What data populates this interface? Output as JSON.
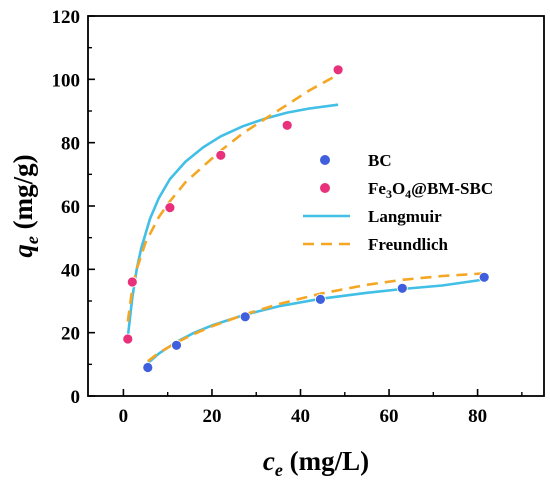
{
  "chart_data": {
    "type": "scatter",
    "xlabel": {
      "symbol": "c",
      "subscript": "e",
      "unit": " (mg/L)"
    },
    "ylabel": {
      "symbol": "q",
      "subscript": "e",
      "unit": " (mg/g)"
    },
    "xlim": [
      -8,
      95
    ],
    "ylim": [
      0,
      120
    ],
    "xticks": [
      0,
      20,
      40,
      60,
      80
    ],
    "yticks": [
      0,
      20,
      40,
      60,
      80,
      100,
      120
    ],
    "grid": false,
    "legend_position": "right",
    "series": [
      {
        "name": "BC",
        "kind": "points",
        "color": "#3f5fdd",
        "x": [
          5.5,
          12,
          27.5,
          44.5,
          63,
          81.5
        ],
        "y": [
          9,
          16,
          25,
          30.5,
          34,
          37.5
        ]
      },
      {
        "name": "Fe3O4@BM-SBC",
        "name_parts": [
          "Fe",
          "3",
          "O",
          "4",
          "@BM-SBC"
        ],
        "kind": "points",
        "color": "#e8317a",
        "x": [
          1,
          2,
          10.5,
          22,
          37,
          48.5
        ],
        "y": [
          18,
          36,
          59.5,
          76,
          85.5,
          103
        ]
      },
      {
        "name": "Langmuir",
        "kind": "curve",
        "color": "#41bfe6",
        "dash": "solid",
        "curves": [
          {
            "x": [
              5.5,
              8,
              12,
              16,
              20,
              27.5,
              35,
              44.5,
              55,
              63,
              72,
              81.5
            ],
            "y": [
              10.4,
              13.4,
              17.1,
              20.0,
              22.3,
              25.7,
              28.3,
              30.7,
              32.6,
              33.8,
              34.9,
              36.8
            ]
          },
          {
            "x": [
              1,
              1.5,
              2,
              3,
              4,
              6,
              8,
              10.5,
              14,
              18,
              22,
              27,
              32,
              37,
              42,
              48.5
            ],
            "y": [
              18.5,
              25,
              31,
              40,
              46.5,
              56,
              62.5,
              68.5,
              74,
              78.5,
              82,
              85.2,
              87.6,
              89.5,
              90.8,
              92
            ]
          }
        ]
      },
      {
        "name": "Freundlich",
        "kind": "curve",
        "color": "#f5a623",
        "dash": "dashed",
        "curves": [
          {
            "x": [
              5.5,
              8,
              12,
              16,
              20,
              27.5,
              35,
              44.5,
              55,
              63,
              72,
              81.5
            ],
            "y": [
              11,
              13.6,
              16.9,
              19.6,
              22,
              25.8,
              29,
              32.3,
              35.1,
              36.7,
              37.9,
              38.7
            ]
          },
          {
            "x": [
              1,
              2,
              3,
              5,
              8,
              10.5,
              14,
              18,
              22,
              27,
              32,
              37,
              42,
              48.5
            ],
            "y": [
              23.5,
              34,
              40,
              48.5,
              56.5,
              61.5,
              67.5,
              72.5,
              77.5,
              83,
              87.5,
              92,
              96.5,
              101.5
            ]
          }
        ]
      }
    ]
  }
}
